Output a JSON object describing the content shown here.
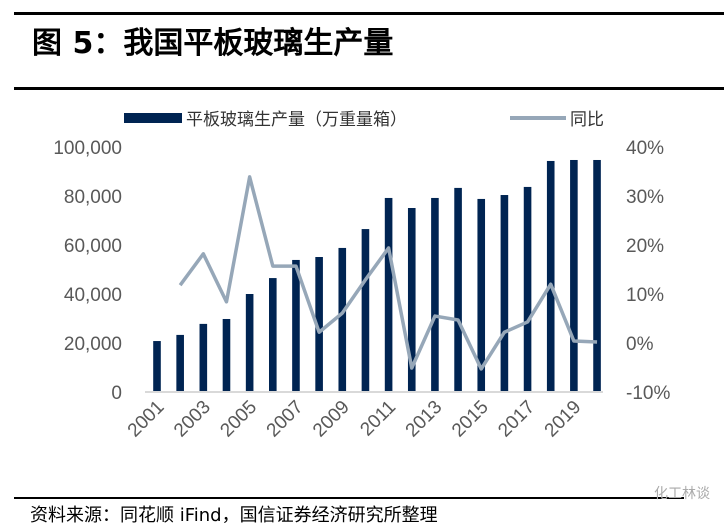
{
  "header": {
    "title": "图 5：我国平板玻璃生产量"
  },
  "footer": {
    "source": "资料来源：同花顺 iFind，国信证券经济研究所整理",
    "watermark": "化工林谈"
  },
  "colors": {
    "bar": "#002452",
    "line": "#96A7B8"
  },
  "chart_data": {
    "type": "bar+line",
    "title": "我国平板玻璃生产量",
    "categories": [
      "2001",
      "2002",
      "2003",
      "2004",
      "2005",
      "2006",
      "2007",
      "2008",
      "2009",
      "2010",
      "2011",
      "2012",
      "2013",
      "2014",
      "2015",
      "2016",
      "2017",
      "2018",
      "2019",
      "2020"
    ],
    "x_tick_labels": [
      "2001",
      "2003",
      "2005",
      "2007",
      "2009",
      "2011",
      "2013",
      "2015",
      "2017",
      "2019"
    ],
    "series": [
      {
        "name": "平板玻璃生产量（万重量箱）",
        "type": "bar",
        "axis": "left",
        "values": [
          20800,
          23300,
          27800,
          29800,
          40000,
          46500,
          53900,
          55100,
          58800,
          66500,
          79200,
          75100,
          79200,
          83300,
          78800,
          80400,
          83700,
          94300,
          94700,
          94700
        ]
      },
      {
        "name": "同比",
        "type": "line",
        "axis": "right",
        "values": [
          null,
          11.8,
          18.2,
          8.4,
          33.9,
          15.7,
          15.7,
          2.2,
          6.1,
          12.9,
          19.4,
          -5.1,
          5.5,
          4.7,
          -5.3,
          2.2,
          4.3,
          12.0,
          0.4,
          0.2
        ]
      }
    ],
    "y_left": {
      "ylim": [
        0,
        100000
      ],
      "ticks": [
        "0",
        "20,000",
        "40,000",
        "60,000",
        "80,000",
        "100,000"
      ]
    },
    "y_right": {
      "ylim": [
        -10,
        40
      ],
      "ticks": [
        "-10%",
        "0%",
        "10%",
        "20%",
        "30%",
        "40%"
      ]
    },
    "legend": "top",
    "grid": false
  }
}
